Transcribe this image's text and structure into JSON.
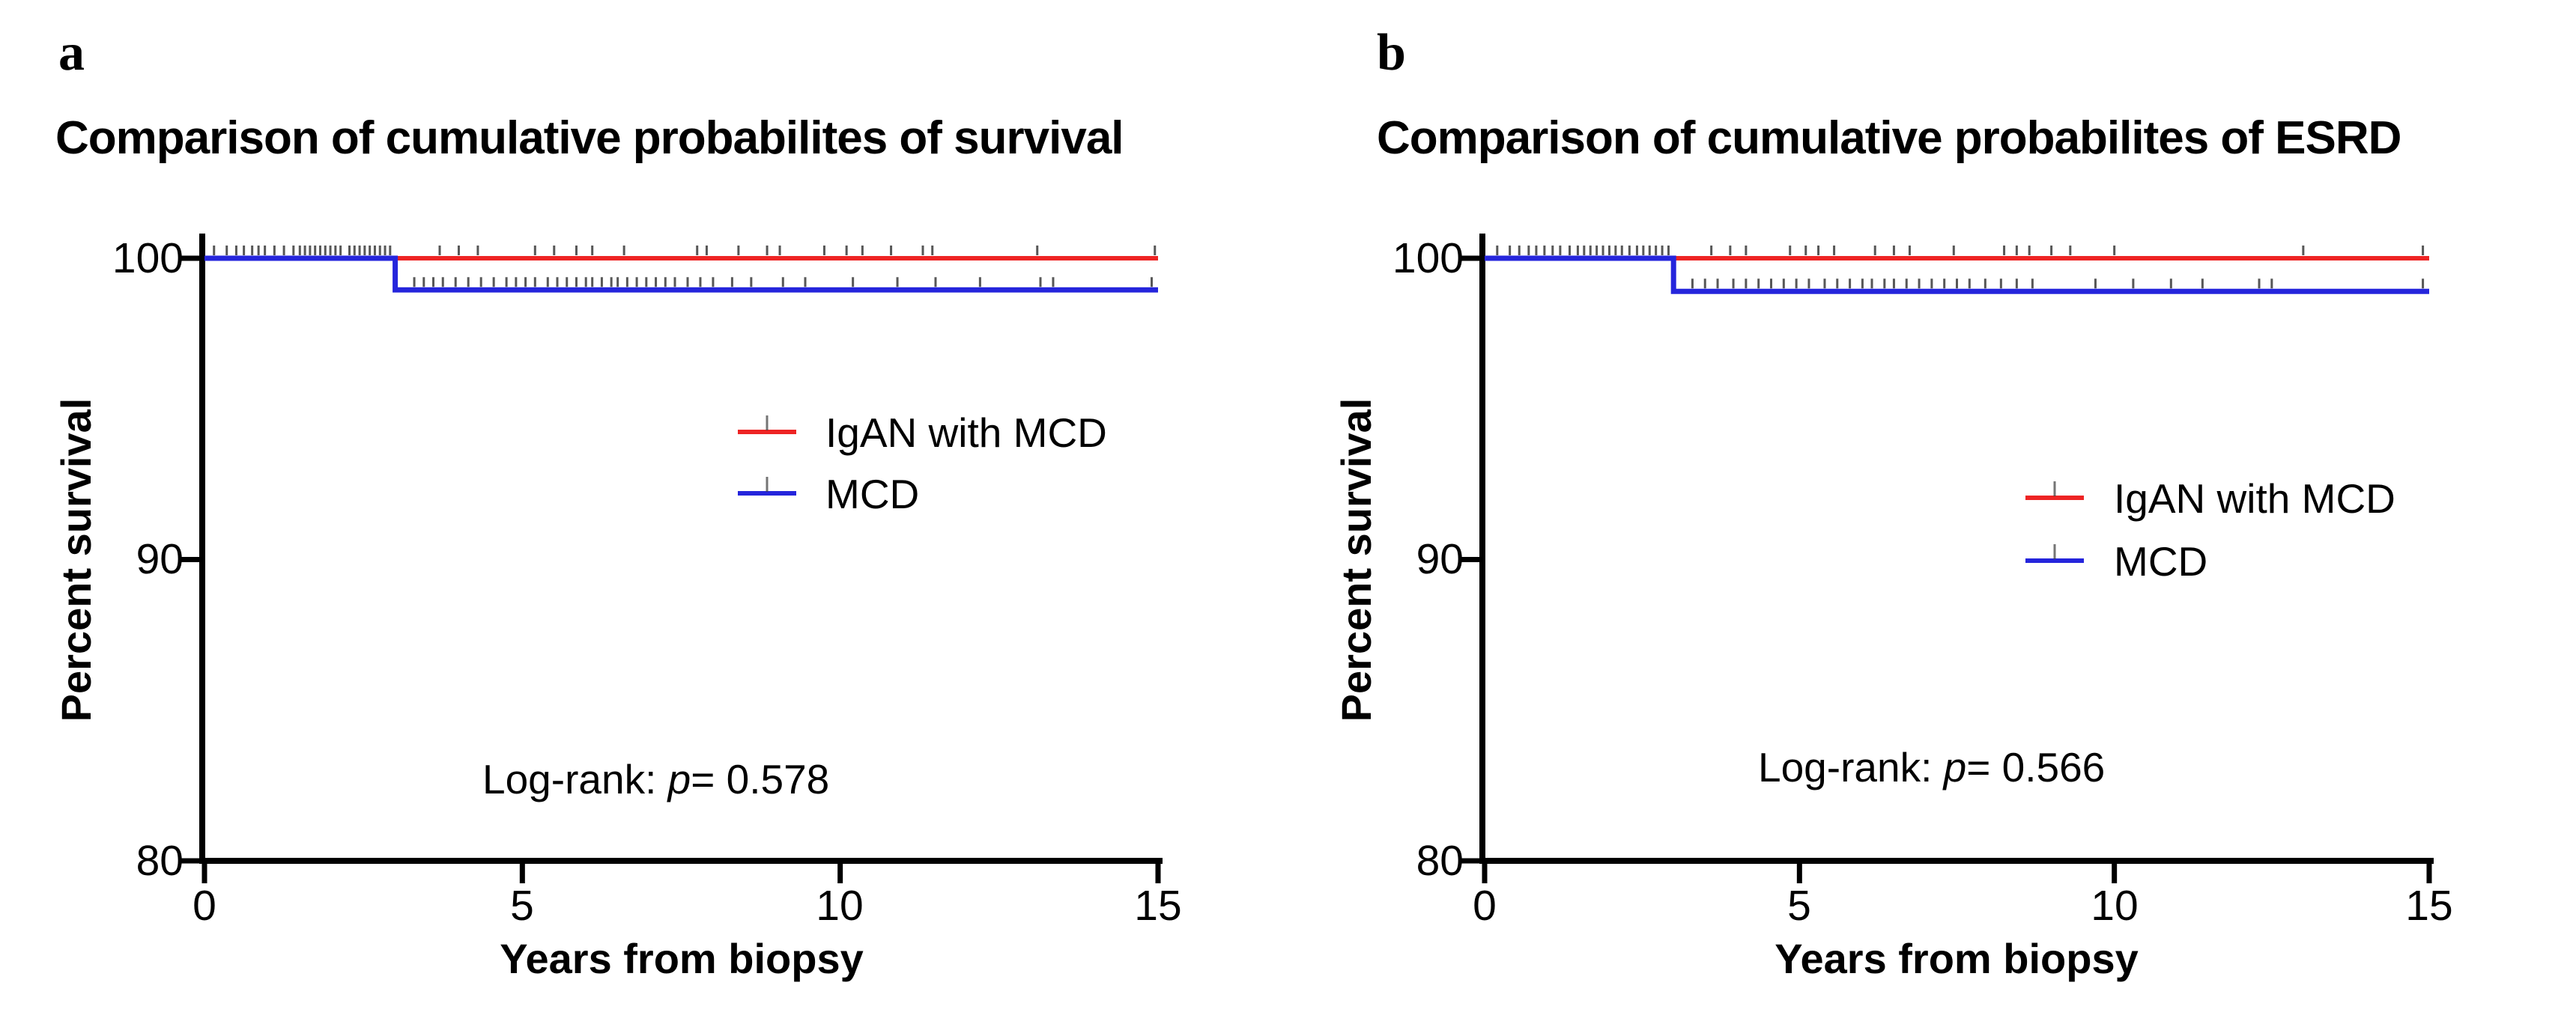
{
  "figure": {
    "background": "#ffffff",
    "description_visible_panels": [
      "a",
      "b"
    ]
  },
  "colors": {
    "igan_line": "#ee2424",
    "mcd_line": "#2525dc",
    "censor_mark": "#3a3a3a",
    "axis": "#000000",
    "text": "#000000"
  },
  "chart_data": [
    {
      "type": "line",
      "panel_letter": "a",
      "title": "Comparison of cumulative probabilites of survival",
      "xlabel": "Years from biopsy",
      "ylabel": "Percent survival",
      "xlim": [
        0,
        15
      ],
      "ylim": [
        80,
        100
      ],
      "xticks": [
        0,
        5,
        10,
        15
      ],
      "yticks": [
        100,
        90,
        80
      ],
      "grid": false,
      "legend_position": "inside-center-right",
      "log_rank": {
        "label": "Log-rank: ",
        "p_symbol": "p",
        "value": "= 0.578"
      },
      "series": [
        {
          "name": "IgAN with MCD",
          "color": "igan_line",
          "steps": [
            [
              0,
              100
            ],
            [
              15,
              100
            ]
          ]
        },
        {
          "name": "MCD",
          "color": "mcd_line",
          "steps": [
            [
              0,
              100
            ],
            [
              3,
              100
            ],
            [
              3,
              98.95
            ],
            [
              15,
              98.95
            ]
          ]
        }
      ],
      "censor_marks": {
        "top_line_years": [
          0.15,
          0.35,
          0.5,
          0.62,
          0.75,
          0.85,
          0.95,
          1.1,
          1.25,
          1.4,
          1.5,
          1.58,
          1.66,
          1.74,
          1.82,
          1.9,
          1.98,
          2.06,
          2.14,
          2.28,
          2.36,
          2.44,
          2.52,
          2.6,
          2.68,
          2.76,
          2.84,
          2.92,
          3.7,
          4.0,
          4.3,
          5.2,
          5.5,
          5.85,
          6.1,
          6.6,
          7.75,
          7.9,
          8.4,
          8.85,
          9.05,
          9.75,
          10.1,
          10.35,
          10.8,
          11.3,
          11.45,
          13.1,
          14.95
        ],
        "bottom_line_years": [
          3.3,
          3.45,
          3.6,
          3.75,
          3.95,
          4.15,
          4.35,
          4.55,
          4.75,
          4.9,
          5.05,
          5.2,
          5.4,
          5.55,
          5.7,
          5.85,
          6.0,
          6.1,
          6.25,
          6.4,
          6.5,
          6.65,
          6.8,
          6.95,
          7.1,
          7.25,
          7.4,
          7.6,
          7.8,
          8.0,
          8.3,
          8.6,
          9.1,
          9.45,
          10.2,
          10.9,
          11.5,
          12.2,
          13.15,
          13.35,
          14.9
        ]
      }
    },
    {
      "type": "line",
      "panel_letter": "b",
      "title": "Comparison of cumulative probabilites of ESRD",
      "xlabel": "Years from biopsy",
      "ylabel": "Percent survival",
      "xlim": [
        0,
        15
      ],
      "ylim": [
        80,
        100
      ],
      "xticks": [
        0,
        5,
        10,
        15
      ],
      "yticks": [
        100,
        90,
        80
      ],
      "grid": false,
      "legend_position": "inside-center-right",
      "log_rank": {
        "label": "Log-rank: ",
        "p_symbol": "p",
        "value": "= 0.566"
      },
      "series": [
        {
          "name": "IgAN with MCD",
          "color": "igan_line",
          "steps": [
            [
              0,
              100
            ],
            [
              15,
              100
            ]
          ]
        },
        {
          "name": "MCD",
          "color": "mcd_line",
          "steps": [
            [
              0,
              100
            ],
            [
              3,
              100
            ],
            [
              3,
              98.9
            ],
            [
              15,
              98.9
            ]
          ]
        }
      ],
      "censor_marks": {
        "top_line_years": [
          0.2,
          0.4,
          0.55,
          0.7,
          0.82,
          0.95,
          1.08,
          1.2,
          1.35,
          1.48,
          1.58,
          1.68,
          1.78,
          1.88,
          1.98,
          2.08,
          2.18,
          2.3,
          2.42,
          2.52,
          2.62,
          2.72,
          2.82,
          2.92,
          3.6,
          3.9,
          4.15,
          4.85,
          5.1,
          5.3,
          5.55,
          6.2,
          6.5,
          6.75,
          7.45,
          8.25,
          8.45,
          8.65,
          9.0,
          9.3,
          10.0,
          13.0,
          14.9
        ],
        "bottom_line_years": [
          3.3,
          3.5,
          3.7,
          3.95,
          4.15,
          4.35,
          4.55,
          4.75,
          4.95,
          5.15,
          5.4,
          5.6,
          5.8,
          6.0,
          6.15,
          6.35,
          6.5,
          6.7,
          6.9,
          7.1,
          7.3,
          7.5,
          7.7,
          7.95,
          8.2,
          8.45,
          8.7,
          9.7,
          10.3,
          10.9,
          11.4,
          12.3,
          12.5,
          14.9
        ]
      }
    }
  ]
}
